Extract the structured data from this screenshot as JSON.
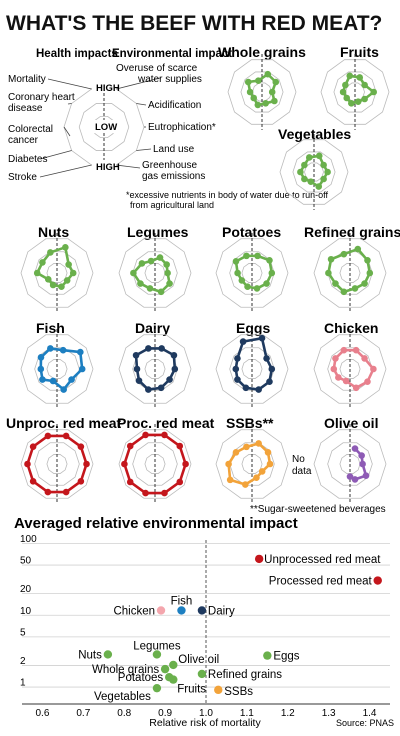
{
  "title": "WHAT'S THE BEEF WITH RED MEAT?",
  "legend": {
    "left_header": "Health impacts",
    "right_header": "Environmental impact",
    "high": "HIGH",
    "low": "LOW",
    "health_items": [
      "Mortality",
      "Coronary heart disease",
      "Colorectal cancer",
      "Diabetes",
      "Stroke"
    ],
    "env_items": [
      "Overuse of scarce water supplies",
      "Acidification",
      "Eutrophication*",
      "Land use",
      "Greenhouse gas emissions"
    ],
    "footnote": "*excessive nutrients in body of water due to run-off from agricultural land"
  },
  "colors": {
    "green": "#6ab04c",
    "blue": "#1d7fc1",
    "navy": "#1f3a5f",
    "pink": "#e8808d",
    "red": "#c4161c",
    "orange": "#f2a33a",
    "purple": "#8e5bb5",
    "grid": "#bbbbbb"
  },
  "radar_panels": [
    {
      "name": "Whole grains",
      "color": "green",
      "values": [
        0.55,
        0.5,
        0.3,
        0.45,
        0.35,
        0.4,
        0.3,
        0.35,
        0.5,
        0.35
      ]
    },
    {
      "name": "Fruits",
      "color": "green",
      "values": [
        0.45,
        0.35,
        0.55,
        0.35,
        0.3,
        0.35,
        0.3,
        0.35,
        0.35,
        0.5
      ]
    },
    {
      "name": "Vegetables",
      "color": "green",
      "values": [
        0.5,
        0.35,
        0.4,
        0.35,
        0.45,
        0.3,
        0.35,
        0.4,
        0.35,
        0.45
      ]
    },
    {
      "name": "Nuts",
      "color": "green",
      "values": [
        0.75,
        0.4,
        0.45,
        0.35,
        0.4,
        0.35,
        0.3,
        0.55,
        0.5,
        0.6
      ]
    },
    {
      "name": "Legumes",
      "color": "green",
      "values": [
        0.45,
        0.4,
        0.35,
        0.5,
        0.55,
        0.45,
        0.5,
        0.6,
        0.45,
        0.35
      ]
    },
    {
      "name": "Potatoes",
      "color": "green",
      "values": [
        0.5,
        0.6,
        0.55,
        0.5,
        0.45,
        0.4,
        0.35,
        0.4,
        0.55,
        0.5
      ]
    },
    {
      "name": "Refined grains",
      "color": "green",
      "values": [
        0.7,
        0.6,
        0.55,
        0.5,
        0.45,
        0.55,
        0.5,
        0.6,
        0.65,
        0.55
      ]
    },
    {
      "name": "Fish",
      "color": "blue",
      "values": [
        0.55,
        0.8,
        0.7,
        0.5,
        0.6,
        0.35,
        0.5,
        0.45,
        0.55,
        0.6
      ]
    },
    {
      "name": "Dairy",
      "color": "navy",
      "values": [
        0.6,
        0.65,
        0.55,
        0.5,
        0.55,
        0.6,
        0.55,
        0.5,
        0.65,
        0.6
      ]
    },
    {
      "name": "Eggs",
      "color": "navy",
      "values": [
        0.9,
        0.5,
        0.55,
        0.6,
        0.6,
        0.55,
        0.5,
        0.45,
        0.5,
        0.8
      ]
    },
    {
      "name": "Chicken",
      "color": "pink",
      "values": [
        0.55,
        0.5,
        0.65,
        0.6,
        0.55,
        0.35,
        0.4,
        0.45,
        0.5,
        0.55
      ]
    },
    {
      "name": "Unproc. red meat",
      "color": "red",
      "values": [
        0.82,
        0.82,
        0.82,
        0.82,
        0.82,
        0.82,
        0.82,
        0.82,
        0.82,
        0.82
      ]
    },
    {
      "name": "Proc. red meat",
      "color": "red",
      "values": [
        0.85,
        0.85,
        0.85,
        0.85,
        0.85,
        0.85,
        0.85,
        0.85,
        0.85,
        0.85
      ]
    },
    {
      "name": "SSBs**",
      "color": "orange",
      "values": [
        0.6,
        0.55,
        0.5,
        0.35,
        0.4,
        0.6,
        0.75,
        0.65,
        0.55,
        0.5
      ]
    },
    {
      "name": "Olive oil",
      "color": "purple",
      "values": [
        0.45,
        0.4,
        0.35,
        0.55,
        0.45,
        0.0,
        0.0,
        0.0,
        0.0,
        0.0
      ],
      "no_data_label": "No data"
    }
  ],
  "ssb_note": "**Sugar-sweetened beverages",
  "chart_data": {
    "type": "scatter",
    "title": "Averaged relative environmental impact",
    "xlabel": "Relative risk of mortality",
    "xlim": [
      0.55,
      1.45
    ],
    "x_ticks": [
      0.6,
      0.7,
      0.8,
      0.9,
      1.0,
      1.1,
      1.2,
      1.3,
      1.4
    ],
    "y_ticks": [
      1,
      2,
      5,
      10,
      20,
      50,
      100
    ],
    "y_scale": "log",
    "ylim": [
      0.65,
      110
    ],
    "points": [
      {
        "name": "Unprocessed red meat",
        "x": 1.13,
        "y": 60,
        "color": "#c4161c"
      },
      {
        "name": "Processed red meat",
        "x": 1.42,
        "y": 30,
        "color": "#c4161c"
      },
      {
        "name": "Chicken",
        "x": 0.89,
        "y": 11.5,
        "color": "#f4a6ad"
      },
      {
        "name": "Fish",
        "x": 0.94,
        "y": 11.5,
        "color": "#1d7fc1"
      },
      {
        "name": "Dairy",
        "x": 0.99,
        "y": 11.5,
        "color": "#1f3a5f"
      },
      {
        "name": "Nuts",
        "x": 0.76,
        "y": 2.8,
        "color": "#6ab04c"
      },
      {
        "name": "Legumes",
        "x": 0.88,
        "y": 2.8,
        "color": "#6ab04c"
      },
      {
        "name": "Eggs",
        "x": 1.15,
        "y": 2.7,
        "color": "#6ab04c"
      },
      {
        "name": "Whole grains",
        "x": 0.9,
        "y": 1.75,
        "color": "#6ab04c"
      },
      {
        "name": "Olive oil",
        "x": 0.92,
        "y": 2.0,
        "color": "#6ab04c"
      },
      {
        "name": "Potatoes",
        "x": 0.91,
        "y": 1.35,
        "color": "#6ab04c"
      },
      {
        "name": "Refined grains",
        "x": 0.99,
        "y": 1.5,
        "color": "#6ab04c"
      },
      {
        "name": "Fruits",
        "x": 0.92,
        "y": 1.25,
        "color": "#6ab04c"
      },
      {
        "name": "Vegetables",
        "x": 0.88,
        "y": 0.95,
        "color": "#6ab04c"
      },
      {
        "name": "SSBs",
        "x": 1.03,
        "y": 0.9,
        "color": "#f2a33a"
      }
    ]
  },
  "source": "Source: PNAS"
}
